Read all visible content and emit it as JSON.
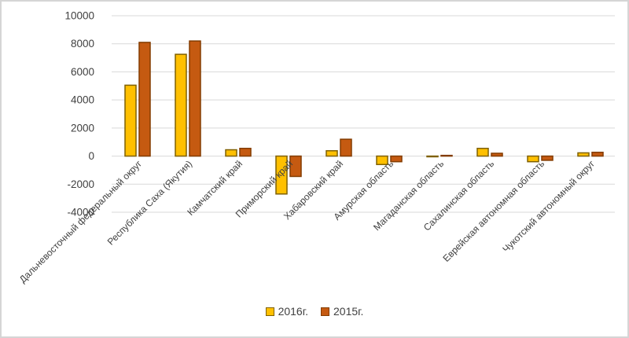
{
  "window": {
    "background": "#ffffff",
    "border_color": "#d5d5d5"
  },
  "chart_data": {
    "type": "bar",
    "title": "",
    "xlabel": "",
    "ylabel": "",
    "categories": [
      "Дальневосточный федеральный округ",
      "Республика Саха (Якутия)",
      "Камчатский край",
      "Приморский край",
      "Хабаровский край",
      "Амурская область",
      "Магаданская область",
      "Сахалинская область",
      "Еврейская автономная область",
      "Чукотский автономный округ"
    ],
    "series": [
      {
        "name": "2016г.",
        "fill": "#FFC000",
        "stroke": "#7F6000",
        "values": [
          5050,
          7250,
          450,
          -2700,
          380,
          -600,
          -50,
          550,
          -400,
          230
        ]
      },
      {
        "name": "2015г.",
        "fill": "#C55A11",
        "stroke": "#833C00",
        "values": [
          8100,
          8200,
          550,
          -1450,
          1200,
          -400,
          50,
          200,
          -300,
          270
        ]
      }
    ],
    "ylim": [
      -4000,
      10000
    ],
    "ytick_step": 2000,
    "yticks": [
      10000,
      8000,
      6000,
      4000,
      2000,
      0,
      -2000,
      -4000
    ],
    "grid": true,
    "gridline_color": "#D9D9D9",
    "axis_line_color": "#D9D9D9",
    "tick_label_color": "#404040",
    "category_label_color": "#404040",
    "category_label_rotation_deg": -45,
    "legend_position": "bottom"
  }
}
